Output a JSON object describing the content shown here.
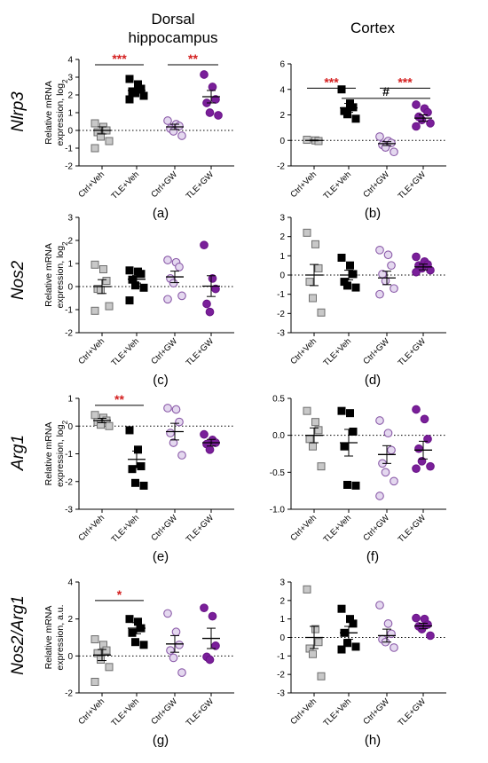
{
  "figure": {
    "column_titles": [
      [
        "Dorsal",
        "hippocampus"
      ],
      [
        "Cortex"
      ]
    ],
    "row_labels": [
      "Nlrp3",
      "Nos2",
      "Arg1",
      "Nos2/Arg1"
    ],
    "ylabels": [
      [
        "Relative mRNA",
        "expression, log",
        "2"
      ],
      [
        "Relative mRNA",
        "expression, log",
        "2"
      ],
      [
        "Relative mRNA",
        "expression, log",
        "2"
      ],
      [
        "Relative mRNA",
        "expression, a.u.",
        ""
      ]
    ],
    "panel_letters": [
      "(a)",
      "(b)",
      "(c)",
      "(d)",
      "(e)",
      "(f)",
      "(g)",
      "(h)"
    ]
  },
  "chart_data": [
    {
      "panel": "(a)",
      "type": "scatter",
      "categories": [
        "Ctrl+Veh",
        "TLE+Veh",
        "Ctrl+GW",
        "TLE+GW"
      ],
      "ylim": [
        -2,
        4
      ],
      "yticks": [
        -2,
        -1,
        0,
        1,
        2,
        3,
        4
      ],
      "reference_line_y": 0,
      "points": [
        [
          0.4,
          0.2,
          0.0,
          -0.1,
          -0.35,
          -0.6,
          -1.0
        ],
        [
          2.9,
          2.6,
          2.35,
          2.2,
          2.1,
          1.95,
          1.75
        ],
        [
          0.55,
          0.35,
          0.25,
          0.1,
          -0.05,
          -0.3
        ],
        [
          3.15,
          2.45,
          1.75,
          1.55,
          1.0,
          0.85
        ]
      ],
      "means": [
        0.0,
        2.25,
        0.2,
        1.9
      ],
      "sems": [
        0.2,
        0.15,
        0.15,
        0.35
      ],
      "significance": [
        {
          "groups": [
            0,
            1
          ],
          "label": "***",
          "color": "#d42020",
          "y": 3.7
        },
        {
          "groups": [
            2,
            3
          ],
          "label": "**",
          "color": "#d42020",
          "y": 3.7
        }
      ]
    },
    {
      "panel": "(b)",
      "type": "scatter",
      "categories": [
        "Ctrl+Veh",
        "TLE+Veh",
        "Ctrl+GW",
        "TLE+GW"
      ],
      "ylim": [
        -2,
        6
      ],
      "yticks": [
        -2,
        0,
        2,
        4,
        6
      ],
      "reference_line_y": 0,
      "points": [
        [
          0.05,
          0.0,
          -0.05
        ],
        [
          4.0,
          2.9,
          2.6,
          2.3,
          2.05,
          1.7
        ],
        [
          0.3,
          -0.05,
          -0.2,
          -0.35,
          -0.55,
          -0.9
        ],
        [
          2.8,
          2.5,
          2.2,
          1.85,
          1.6,
          1.35,
          1.1
        ]
      ],
      "means": [
        0.0,
        2.55,
        -0.25,
        1.75
      ],
      "sems": [
        0.03,
        0.35,
        0.15,
        0.25
      ],
      "significance": [
        {
          "groups": [
            0,
            1
          ],
          "label": "***",
          "color": "#d42020",
          "y": 4.1
        },
        {
          "groups": [
            2,
            3
          ],
          "label": "***",
          "color": "#d42020",
          "y": 4.1
        },
        {
          "groups": [
            1,
            3
          ],
          "label": "#",
          "color": "#000000",
          "y": 3.3
        }
      ]
    },
    {
      "panel": "(c)",
      "type": "scatter",
      "categories": [
        "Ctrl+Veh",
        "TLE+Veh",
        "Ctrl+GW",
        "TLE+GW"
      ],
      "ylim": [
        -2,
        3
      ],
      "yticks": [
        -2,
        -1,
        0,
        1,
        2,
        3
      ],
      "reference_line_y": 0,
      "points": [
        [
          0.95,
          0.75,
          0.25,
          -0.1,
          -0.15,
          -0.85,
          -1.05
        ],
        [
          0.7,
          0.65,
          0.55,
          0.3,
          0.05,
          -0.05,
          -0.6
        ],
        [
          1.15,
          1.05,
          0.85,
          0.35,
          0.15,
          -0.4,
          -0.55
        ],
        [
          1.8,
          0.35,
          -0.1,
          -0.75,
          -1.1
        ]
      ],
      "means": [
        0.0,
        0.32,
        0.42,
        0.02
      ],
      "sems": [
        0.3,
        0.17,
        0.25,
        0.45
      ],
      "significance": []
    },
    {
      "panel": "(d)",
      "type": "scatter",
      "categories": [
        "Ctrl+Veh",
        "TLE+Veh",
        "Ctrl+GW",
        "TLE+GW"
      ],
      "ylim": [
        -3,
        3
      ],
      "yticks": [
        -3,
        -2,
        -1,
        0,
        1,
        2,
        3
      ],
      "reference_line_y": 0,
      "points": [
        [
          2.2,
          1.6,
          0.35,
          -0.35,
          -1.2,
          -1.95
        ],
        [
          0.9,
          0.5,
          0.05,
          -0.35,
          -0.55,
          -0.65
        ],
        [
          1.3,
          1.05,
          0.5,
          0.05,
          -0.3,
          -0.7,
          -1.0
        ],
        [
          0.95,
          0.7,
          0.55,
          0.5,
          0.35,
          0.25,
          0.15
        ]
      ],
      "means": [
        0.0,
        0.0,
        -0.15,
        0.42
      ],
      "sems": [
        0.55,
        0.25,
        0.35,
        0.15
      ],
      "significance": []
    },
    {
      "panel": "(e)",
      "type": "scatter",
      "categories": [
        "Ctrl+Veh",
        "TLE+Veh",
        "Ctrl+GW",
        "TLE+GW"
      ],
      "ylim": [
        -3,
        1
      ],
      "yticks": [
        -3,
        -2,
        -1,
        0,
        1
      ],
      "reference_line_y": 0,
      "points": [
        [
          0.4,
          0.3,
          0.2,
          0.15,
          0.05,
          0.0
        ],
        [
          -0.15,
          -0.85,
          -1.45,
          -1.55,
          -2.05,
          -2.15
        ],
        [
          0.65,
          0.6,
          0.15,
          -0.25,
          -0.6,
          -1.05
        ],
        [
          -0.3,
          -0.5,
          -0.6,
          -0.65,
          -0.85
        ]
      ],
      "means": [
        0.2,
        -1.2,
        -0.2,
        -0.6
      ],
      "sems": [
        0.08,
        0.3,
        0.3,
        0.12
      ],
      "significance": [
        {
          "groups": [
            0,
            1
          ],
          "label": "**",
          "color": "#d42020",
          "y": 0.75
        }
      ]
    },
    {
      "panel": "(f)",
      "type": "scatter",
      "categories": [
        "Ctrl+Veh",
        "TLE+Veh",
        "Ctrl+GW",
        "TLE+GW"
      ],
      "ylim": [
        -1.0,
        0.5
      ],
      "yticks": [
        -1.0,
        -0.5,
        0.0,
        0.5
      ],
      "reference_line_y": 0,
      "points": [
        [
          0.33,
          0.18,
          0.07,
          -0.05,
          -0.15,
          -0.42
        ],
        [
          0.33,
          0.3,
          0.05,
          -0.15,
          -0.67,
          -0.68
        ],
        [
          0.2,
          0.03,
          -0.2,
          -0.38,
          -0.5,
          -0.62,
          -0.82
        ],
        [
          0.35,
          0.22,
          -0.05,
          -0.18,
          -0.35,
          -0.42,
          -0.45
        ]
      ],
      "means": [
        0.0,
        -0.1,
        -0.26,
        -0.2
      ],
      "sems": [
        0.1,
        0.18,
        0.12,
        0.12
      ],
      "significance": []
    },
    {
      "panel": "(g)",
      "type": "scatter",
      "categories": [
        "Ctrl+Veh",
        "TLE+Veh",
        "Ctrl+GW",
        "TLE+GW"
      ],
      "ylim": [
        -2,
        4
      ],
      "yticks": [
        -2,
        0,
        2,
        4
      ],
      "reference_line_y": 0,
      "points": [
        [
          0.9,
          0.6,
          0.3,
          0.15,
          -0.2,
          -0.6,
          -1.4
        ],
        [
          2.0,
          1.85,
          1.5,
          1.25,
          0.75,
          0.6
        ],
        [
          2.3,
          1.3,
          0.6,
          0.3,
          -0.1,
          -0.9
        ],
        [
          2.6,
          2.15,
          0.55,
          -0.05,
          -0.2
        ]
      ],
      "means": [
        0.05,
        1.5,
        0.65,
        0.95
      ],
      "sems": [
        0.3,
        0.3,
        0.45,
        0.55
      ],
      "significance": [
        {
          "groups": [
            0,
            1
          ],
          "label": "*",
          "color": "#d42020",
          "y": 3.0
        }
      ]
    },
    {
      "panel": "(h)",
      "type": "scatter",
      "categories": [
        "Ctrl+Veh",
        "TLE+Veh",
        "Ctrl+GW",
        "TLE+GW"
      ],
      "ylim": [
        -3,
        3
      ],
      "yticks": [
        -3,
        -2,
        -1,
        0,
        1,
        2,
        3
      ],
      "reference_line_y": 0,
      "points": [
        [
          2.6,
          0.45,
          -0.25,
          -0.6,
          -0.9,
          -2.1
        ],
        [
          1.55,
          1.0,
          0.75,
          0.25,
          -0.3,
          -0.5,
          -0.65
        ],
        [
          1.75,
          0.75,
          0.2,
          -0.1,
          -0.25,
          -0.55
        ],
        [
          1.05,
          1.0,
          0.7,
          0.6,
          0.45,
          0.1
        ]
      ],
      "means": [
        0.0,
        0.25,
        0.1,
        0.62
      ],
      "sems": [
        0.6,
        0.35,
        0.35,
        0.15
      ],
      "significance": []
    }
  ],
  "styles": {
    "groups": [
      {
        "shape": "square",
        "fill": "#c8c8c8",
        "stroke": "#6e6e6e"
      },
      {
        "shape": "square",
        "fill": "#000000",
        "stroke": "#000000"
      },
      {
        "shape": "circle",
        "fill": "#e4d8ef",
        "stroke": "#8a5aa8"
      },
      {
        "shape": "circle",
        "fill": "#7a1f9a",
        "stroke": "#6a1588"
      }
    ]
  }
}
